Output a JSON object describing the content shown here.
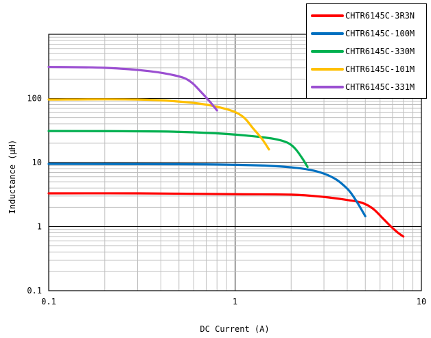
{
  "chart_data": {
    "type": "line",
    "xscale": "log",
    "yscale": "log",
    "xlim": [
      0.1,
      10
    ],
    "ylim": [
      0.1,
      1000
    ],
    "xlabel": "DC Current (A)",
    "ylabel": "Inductance (μH)",
    "grid": true,
    "legend_position": "top-right",
    "x_ticks": [
      {
        "value": 0.1,
        "label": "0.1"
      },
      {
        "value": 1,
        "label": "1"
      },
      {
        "value": 10,
        "label": "10"
      }
    ],
    "y_ticks": [
      {
        "value": 0.1,
        "label": "0.1"
      },
      {
        "value": 1,
        "label": "1"
      },
      {
        "value": 10,
        "label": "10"
      },
      {
        "value": 100,
        "label": "100"
      }
    ],
    "series": [
      {
        "name": "CHTR6145C-3R3N",
        "color": "#ff0000",
        "x": [
          0.1,
          0.3,
          1.0,
          2.0,
          3.0,
          4.0,
          4.8,
          5.5,
          6.2,
          7.0,
          7.5,
          8.0
        ],
        "y": [
          3.3,
          3.3,
          3.2,
          3.15,
          2.9,
          2.6,
          2.35,
          1.9,
          1.35,
          0.95,
          0.8,
          0.7
        ]
      },
      {
        "name": "CHTR6145C-100M",
        "color": "#0070c0",
        "x": [
          0.1,
          0.5,
          1.0,
          1.5,
          2.0,
          2.5,
          3.0,
          3.5,
          4.0,
          4.3,
          4.6,
          5.0
        ],
        "y": [
          9.5,
          9.4,
          9.2,
          8.9,
          8.4,
          7.7,
          6.7,
          5.4,
          3.9,
          3.0,
          2.2,
          1.45
        ]
      },
      {
        "name": "CHTR6145C-330M",
        "color": "#00b050",
        "x": [
          0.1,
          0.4,
          0.8,
          1.2,
          1.6,
          1.9,
          2.1,
          2.3,
          2.45
        ],
        "y": [
          31,
          30.5,
          28.5,
          26,
          23.5,
          20.5,
          16.5,
          11.5,
          8.5
        ]
      },
      {
        "name": "CHTR6145C-101M",
        "color": "#ffc000",
        "x": [
          0.1,
          0.3,
          0.6,
          0.9,
          1.1,
          1.25,
          1.4,
          1.52
        ],
        "y": [
          96,
          96,
          85,
          68,
          52,
          34,
          23,
          16
        ]
      },
      {
        "name": "CHTR6145C-331M",
        "color": "#9b4fd1",
        "x": [
          0.1,
          0.2,
          0.35,
          0.5,
          0.58,
          0.65,
          0.73,
          0.8
        ],
        "y": [
          310,
          300,
          265,
          220,
          180,
          130,
          90,
          65
        ]
      }
    ]
  }
}
